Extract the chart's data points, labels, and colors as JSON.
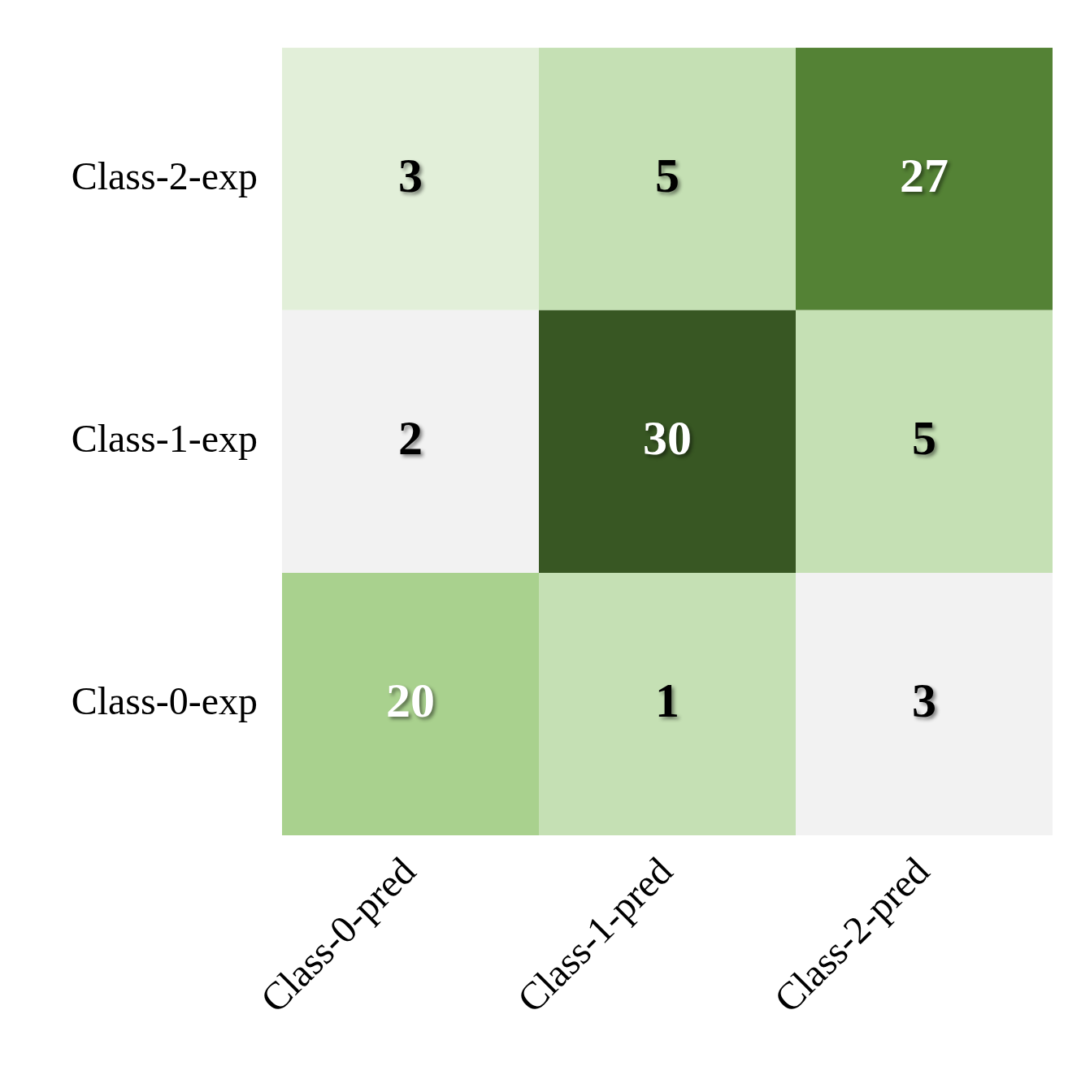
{
  "chart_data": {
    "type": "heatmap",
    "categories": [
      "Class-0-pred",
      "Class-1-pred",
      "Class-2-pred"
    ],
    "y_categories": [
      "Class-2-exp",
      "Class-1-exp",
      "Class-0-exp"
    ],
    "cells": [
      [
        3,
        5,
        27
      ],
      [
        2,
        30,
        5
      ],
      [
        20,
        1,
        3
      ]
    ],
    "colors": [
      [
        "#e2efd9",
        "#c5e0b4",
        "#548235"
      ],
      [
        "#f2f2f2",
        "#385723",
        "#c5e0b4"
      ],
      [
        "#a9d18e",
        "#c5e0b4",
        "#f2f2f2"
      ]
    ],
    "data_labels": true,
    "legend": false
  }
}
